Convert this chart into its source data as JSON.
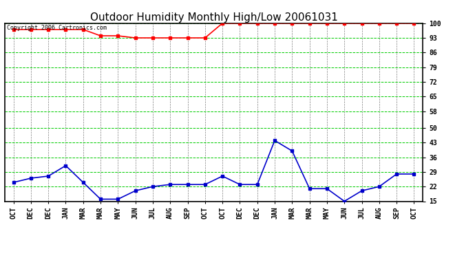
{
  "title": "Outdoor Humidity Monthly High/Low 20061031",
  "copyright_text": "Copyright 2006 Cartronics.com",
  "x_labels": [
    "OCT",
    "DEC",
    "DEC",
    "JAN",
    "MAR",
    "MAR",
    "MAY",
    "JUN",
    "JUL",
    "AUG",
    "SEP",
    "OCT",
    "OCT",
    "DEC",
    "DEC",
    "JAN",
    "MAR",
    "MAR",
    "MAY",
    "JUN",
    "JUL",
    "AUG",
    "SEP",
    "OCT"
  ],
  "high_values": [
    97,
    97,
    97,
    97,
    97,
    94,
    94,
    93,
    93,
    93,
    93,
    93,
    100,
    100,
    100,
    100,
    100,
    100,
    100,
    100,
    100,
    100,
    100,
    100
  ],
  "low_values": [
    24,
    26,
    27,
    32,
    24,
    16,
    16,
    20,
    22,
    23,
    23,
    23,
    27,
    23,
    23,
    44,
    39,
    21,
    21,
    15,
    20,
    22,
    28,
    28
  ],
  "ylim": [
    15,
    100
  ],
  "yticks": [
    15,
    22,
    29,
    36,
    43,
    50,
    58,
    65,
    72,
    79,
    86,
    93,
    100
  ],
  "bg_color": "#ffffff",
  "plot_bg_color": "#ffffff",
  "high_color": "#ff0000",
  "low_color": "#0000cc",
  "grid_color_major": "#00cc00",
  "grid_color_minor": "#808080",
  "title_fontsize": 11,
  "axis_label_fontsize": 7,
  "copyright_fontsize": 6
}
